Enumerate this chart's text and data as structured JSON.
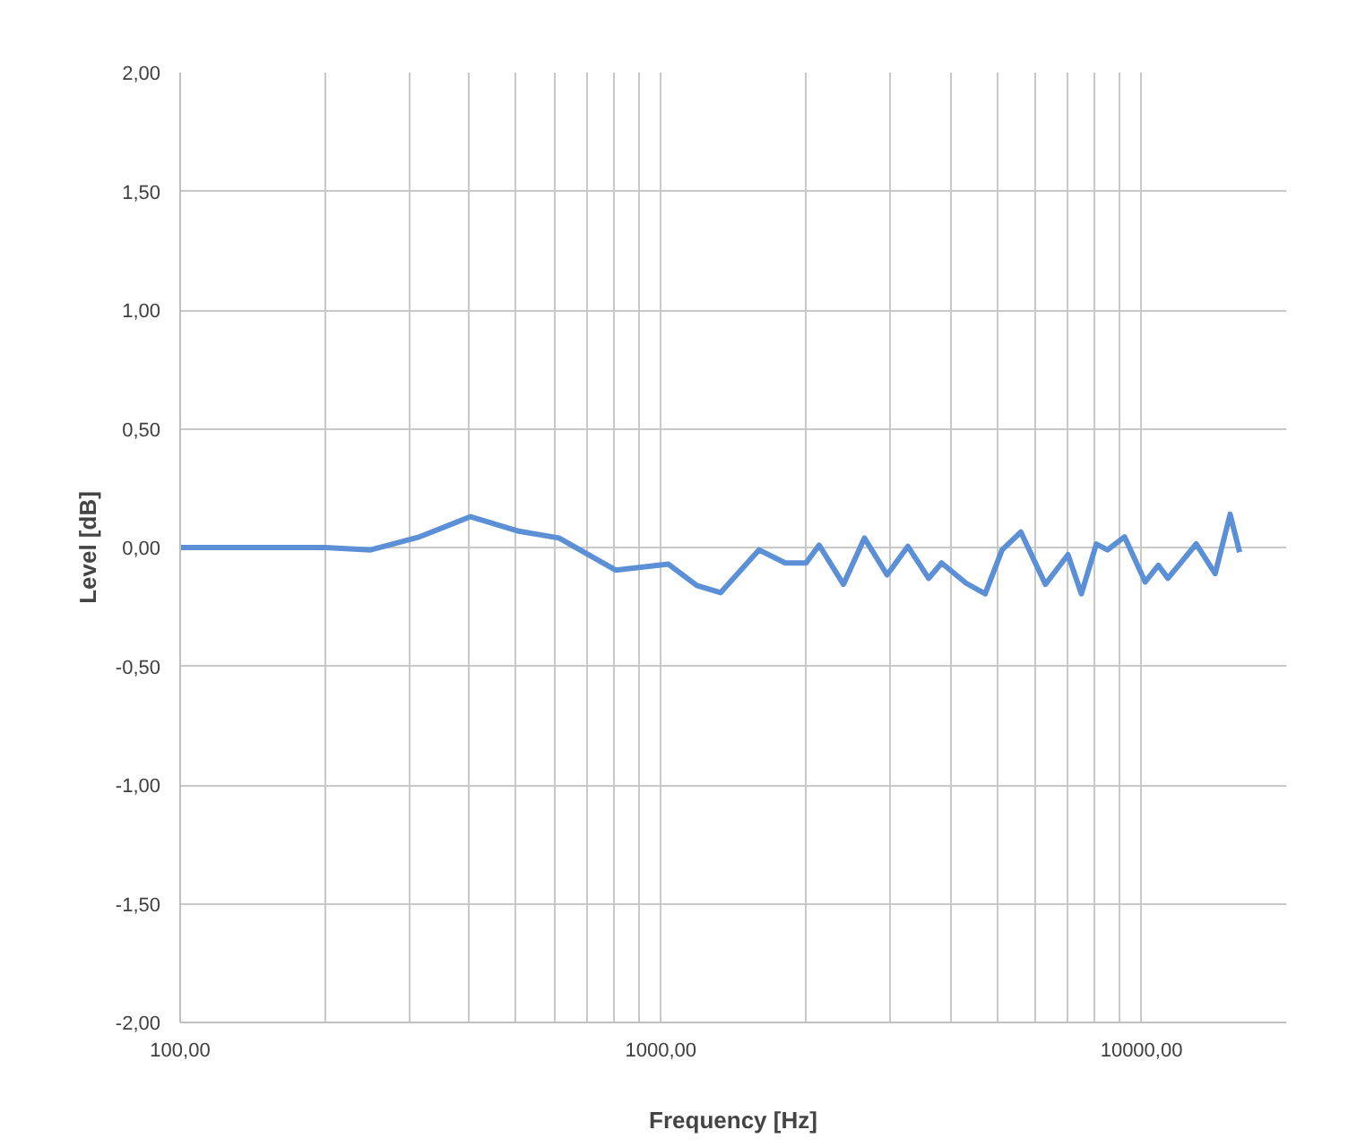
{
  "chart_data": {
    "type": "line",
    "xlabel": "Frequency [Hz]",
    "ylabel": "Level [dB]",
    "log": "x",
    "grid": true,
    "marker": "none",
    "line_style": "solid",
    "xlim": [
      100,
      20000
    ],
    "ylim": [
      -2,
      2
    ],
    "xticks": [
      {
        "value": 100,
        "label": "100,00"
      },
      {
        "value": 200,
        "label": null
      },
      {
        "value": 300,
        "label": null
      },
      {
        "value": 400,
        "label": null
      },
      {
        "value": 500,
        "label": null
      },
      {
        "value": 600,
        "label": null
      },
      {
        "value": 700,
        "label": null
      },
      {
        "value": 800,
        "label": null
      },
      {
        "value": 900,
        "label": null
      },
      {
        "value": 1000,
        "label": "1000,00"
      },
      {
        "value": 2000,
        "label": null
      },
      {
        "value": 3000,
        "label": null
      },
      {
        "value": 4000,
        "label": null
      },
      {
        "value": 5000,
        "label": null
      },
      {
        "value": 6000,
        "label": null
      },
      {
        "value": 7000,
        "label": null
      },
      {
        "value": 8000,
        "label": null
      },
      {
        "value": 9000,
        "label": null
      },
      {
        "value": 10000,
        "label": "10000,00"
      }
    ],
    "yticks": [
      {
        "value": -2,
        "label": "-2,00"
      },
      {
        "value": -1.5,
        "label": "-1,50"
      },
      {
        "value": -1,
        "label": "-1,00"
      },
      {
        "value": -0.5,
        "label": "-0,50"
      },
      {
        "value": 0,
        "label": "0,00"
      },
      {
        "value": 0.5,
        "label": "0,50"
      },
      {
        "value": 1,
        "label": "1,00"
      },
      {
        "value": 1.5,
        "label": "1,50"
      },
      {
        "value": 2,
        "label": "2,00"
      }
    ],
    "series": [
      {
        "color": "#5b8fd6",
        "x": [
          100,
          200,
          249,
          315,
          402,
          503,
          614,
          805,
          1037,
          1188,
          1332,
          1600,
          1815,
          2005,
          2135,
          2399,
          2652,
          2956,
          3265,
          3607,
          3838,
          4315,
          4729,
          5128,
          5610,
          6310,
          7031,
          7499,
          8054,
          8497,
          9220,
          10180,
          10840,
          11350,
          13000,
          14230,
          15290,
          16000
        ],
        "values": [
          0,
          0,
          -0.01,
          0.045,
          0.13,
          0.07,
          0.04,
          -0.095,
          -0.07,
          -0.16,
          -0.19,
          -0.01,
          -0.065,
          -0.065,
          0.01,
          -0.155,
          0.04,
          -0.115,
          0.005,
          -0.13,
          -0.065,
          -0.15,
          -0.195,
          -0.01,
          0.065,
          -0.155,
          -0.03,
          -0.195,
          0.015,
          -0.01,
          0.045,
          -0.145,
          -0.075,
          -0.13,
          0.015,
          -0.11,
          0.14,
          -0.02
        ]
      }
    ]
  }
}
